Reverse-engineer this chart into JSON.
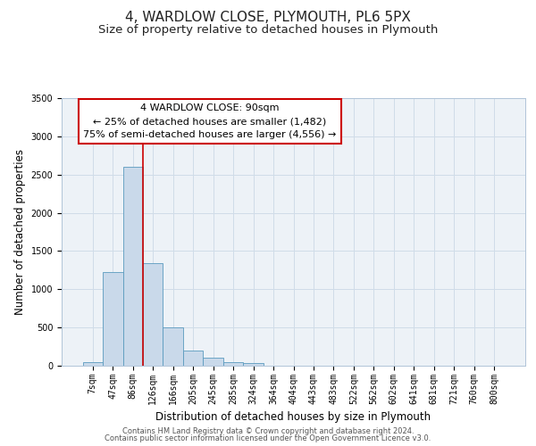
{
  "title": "4, WARDLOW CLOSE, PLYMOUTH, PL6 5PX",
  "subtitle": "Size of property relative to detached houses in Plymouth",
  "bar_values": [
    50,
    1230,
    2600,
    1340,
    500,
    200,
    110,
    50,
    40,
    0,
    0,
    0,
    0,
    0,
    0,
    0,
    0,
    0,
    0,
    0,
    0
  ],
  "bin_labels": [
    "7sqm",
    "47sqm",
    "86sqm",
    "126sqm",
    "166sqm",
    "205sqm",
    "245sqm",
    "285sqm",
    "324sqm",
    "364sqm",
    "404sqm",
    "443sqm",
    "483sqm",
    "522sqm",
    "562sqm",
    "602sqm",
    "641sqm",
    "681sqm",
    "721sqm",
    "760sqm",
    "800sqm"
  ],
  "bar_color": "#c9d9ea",
  "bar_edge_color": "#5a9abe",
  "red_line_bin_index": 2,
  "xlabel": "Distribution of detached houses by size in Plymouth",
  "ylabel": "Number of detached properties",
  "ylim": [
    0,
    3500
  ],
  "yticks": [
    0,
    500,
    1000,
    1500,
    2000,
    2500,
    3000,
    3500
  ],
  "annotation_title": "4 WARDLOW CLOSE: 90sqm",
  "annotation_line1": "← 25% of detached houses are smaller (1,482)",
  "annotation_line2": "75% of semi-detached houses are larger (4,556) →",
  "annotation_box_facecolor": "#ffffff",
  "annotation_box_edgecolor": "#cc0000",
  "footer_line1": "Contains HM Land Registry data © Crown copyright and database right 2024.",
  "footer_line2": "Contains public sector information licensed under the Open Government Licence v3.0.",
  "title_fontsize": 11,
  "subtitle_fontsize": 9.5,
  "axis_label_fontsize": 8.5,
  "tick_fontsize": 7,
  "annotation_fontsize": 8,
  "footer_fontsize": 6,
  "grid_color": "#d0dce8",
  "background_color": "#edf2f7"
}
